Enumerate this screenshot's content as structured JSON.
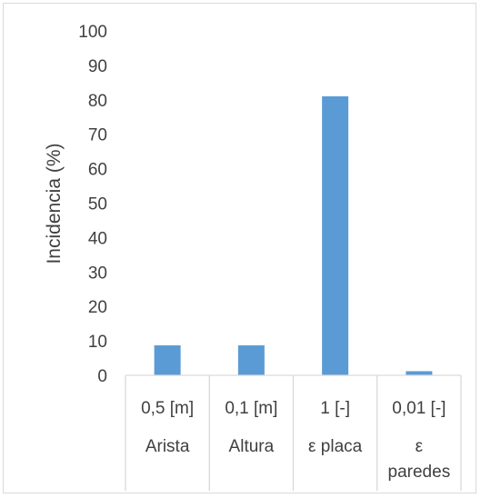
{
  "chart_data": {
    "type": "bar",
    "title": "",
    "xlabel": "",
    "ylabel": "Incidencia (%)",
    "ylim": [
      0,
      100
    ],
    "yticks": [
      0,
      10,
      20,
      30,
      40,
      50,
      60,
      70,
      80,
      90,
      100
    ],
    "grid": false,
    "legend": "none",
    "bar_color": "#5b9bd5",
    "categories": [
      {
        "level1": "0,5 [m]",
        "level2": [
          "Arista"
        ]
      },
      {
        "level1": "0,1 [m]",
        "level2": [
          "Altura"
        ]
      },
      {
        "level1": "1 [-]",
        "level2": [
          "ε placa"
        ]
      },
      {
        "level1": "0,01 [-]",
        "level2": [
          "ε",
          "paredes"
        ]
      }
    ],
    "values": [
      8.7,
      8.7,
      81,
      1.2
    ]
  }
}
